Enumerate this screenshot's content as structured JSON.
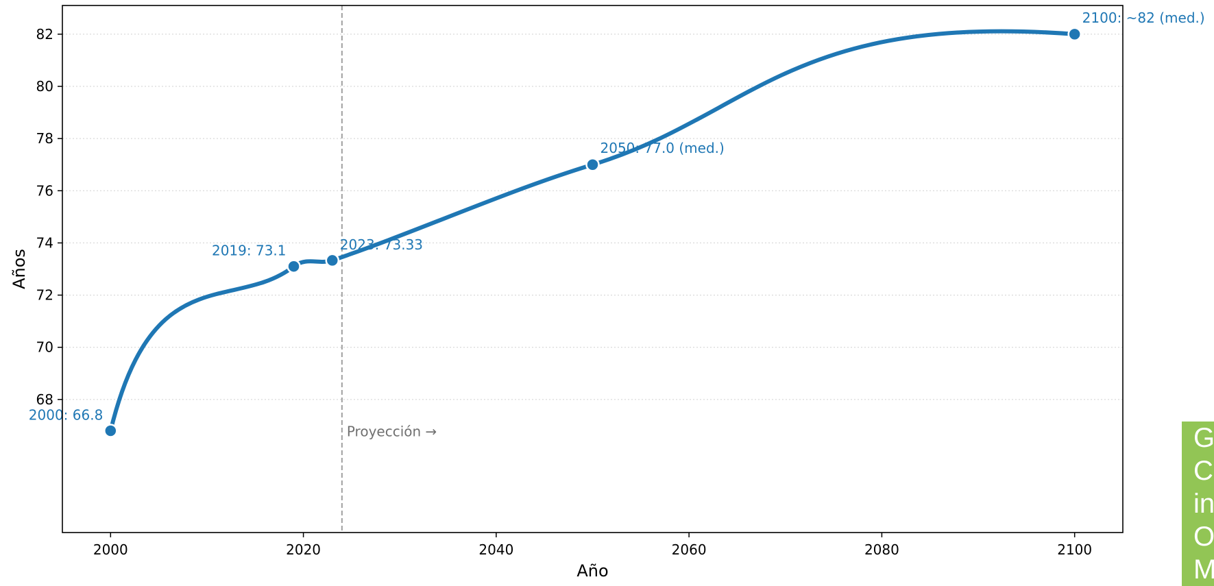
{
  "chart_data": {
    "type": "line",
    "xlabel": "Año",
    "ylabel": "Años",
    "xlim": [
      1995,
      2105
    ],
    "ylim": [
      62.9,
      83.1
    ],
    "xticks": [
      2000,
      2020,
      2040,
      2060,
      2080,
      2100
    ],
    "yticks": [
      68,
      70,
      72,
      74,
      76,
      78,
      80,
      82
    ],
    "grid": "horizontal dotted",
    "line_color": "#1f77b4",
    "series": [
      {
        "x": [
          2000,
          2019,
          2023,
          2050,
          2100
        ],
        "y": [
          66.8,
          73.1,
          73.33,
          77.0,
          82.0
        ]
      }
    ],
    "annotations": [
      {
        "x": 2000,
        "y": 66.8,
        "text": "2000: 66.8"
      },
      {
        "x": 2019,
        "y": 73.1,
        "text": "2019: 73.1"
      },
      {
        "x": 2023,
        "y": 73.33,
        "text": "2023: 73.33"
      },
      {
        "x": 2050,
        "y": 77.0,
        "text": "2050: 77.0 (med.)"
      },
      {
        "x": 2100,
        "y": 82.0,
        "text": "2100: ~82 (med.)"
      }
    ],
    "projection_line": {
      "x": 2024,
      "label": "Proyección →",
      "color": "#a0a0a0"
    }
  },
  "side_box": {
    "lines": [
      "G",
      "C",
      "in",
      "O",
      "M"
    ],
    "color": "#92c555"
  }
}
